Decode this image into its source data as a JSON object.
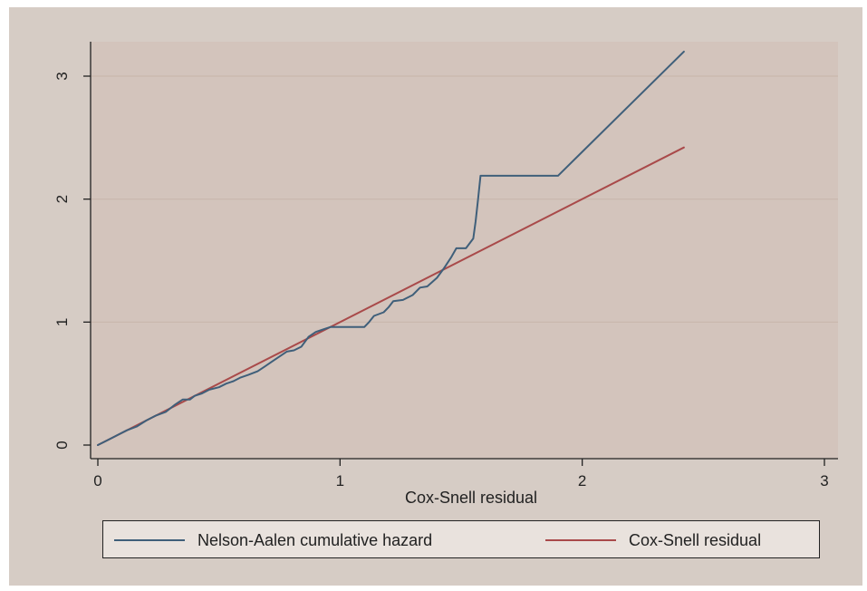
{
  "chart_data": {
    "type": "line",
    "xlabel": "Cox-Snell residual",
    "ylabel": "",
    "xlim": [
      0,
      3
    ],
    "ylim": [
      0,
      3.2
    ],
    "xticks": [
      "0",
      "1",
      "2",
      "3"
    ],
    "yticks": [
      "0",
      "1",
      "2",
      "3"
    ],
    "grid": "horizontal",
    "legend_position": "bottom",
    "series": [
      {
        "name": "Nelson-Aalen cumulative hazard",
        "color": "#3f5f7a",
        "x": [
          0.0,
          0.04,
          0.08,
          0.12,
          0.16,
          0.2,
          0.24,
          0.28,
          0.3,
          0.32,
          0.35,
          0.38,
          0.4,
          0.43,
          0.46,
          0.5,
          0.53,
          0.56,
          0.59,
          0.62,
          0.66,
          0.69,
          0.72,
          0.75,
          0.78,
          0.81,
          0.84,
          0.87,
          0.9,
          0.93,
          0.96,
          1.0,
          1.05,
          1.1,
          1.12,
          1.14,
          1.18,
          1.2,
          1.22,
          1.26,
          1.3,
          1.33,
          1.36,
          1.4,
          1.43,
          1.46,
          1.48,
          1.52,
          1.55,
          1.56,
          1.57,
          1.58,
          1.6,
          1.7,
          1.8,
          1.9,
          2.42
        ],
        "y": [
          0.0,
          0.04,
          0.08,
          0.12,
          0.15,
          0.2,
          0.24,
          0.27,
          0.3,
          0.33,
          0.37,
          0.37,
          0.4,
          0.42,
          0.45,
          0.47,
          0.5,
          0.52,
          0.55,
          0.57,
          0.6,
          0.64,
          0.68,
          0.72,
          0.76,
          0.77,
          0.8,
          0.88,
          0.92,
          0.94,
          0.96,
          0.96,
          0.96,
          0.96,
          1.0,
          1.05,
          1.08,
          1.12,
          1.17,
          1.18,
          1.22,
          1.28,
          1.29,
          1.36,
          1.44,
          1.53,
          1.6,
          1.6,
          1.68,
          1.82,
          2.0,
          2.19,
          2.19,
          2.19,
          2.19,
          2.19,
          3.2
        ]
      },
      {
        "name": "Cox-Snell residual",
        "color": "#a94a4a",
        "x": [
          0.0,
          2.42
        ],
        "y": [
          0.0,
          2.42
        ]
      }
    ]
  }
}
